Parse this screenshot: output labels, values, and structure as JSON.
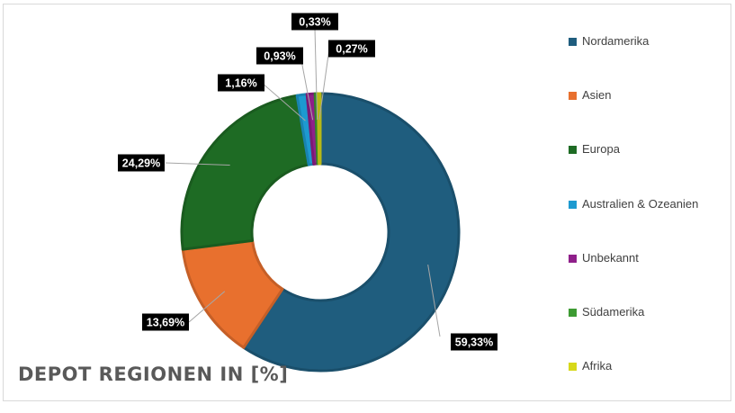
{
  "chart_data": {
    "type": "pie",
    "title": "DEPOT REGIONEN IN [%]",
    "legend_position": "right",
    "slices": [
      {
        "label": "Nordamerika",
        "value": 59.33,
        "display": "59,33%",
        "color": "#1f5d7e"
      },
      {
        "label": "Asien",
        "value": 13.69,
        "display": "13,69%",
        "color": "#e8702e"
      },
      {
        "label": "Europa",
        "value": 24.29,
        "display": "24,29%",
        "color": "#1e6b24"
      },
      {
        "label": "Australien & Ozeanien",
        "value": 1.16,
        "display": "1,16%",
        "color": "#1d9ad0"
      },
      {
        "label": "Unbekannt",
        "value": 0.93,
        "display": "0,93%",
        "color": "#8f1f8a"
      },
      {
        "label": "Südamerika",
        "value": 0.33,
        "display": "0,33%",
        "color": "#3d9b33"
      },
      {
        "label": "Afrika",
        "value": 0.27,
        "display": "0,27%",
        "color": "#d7d81a"
      }
    ]
  }
}
